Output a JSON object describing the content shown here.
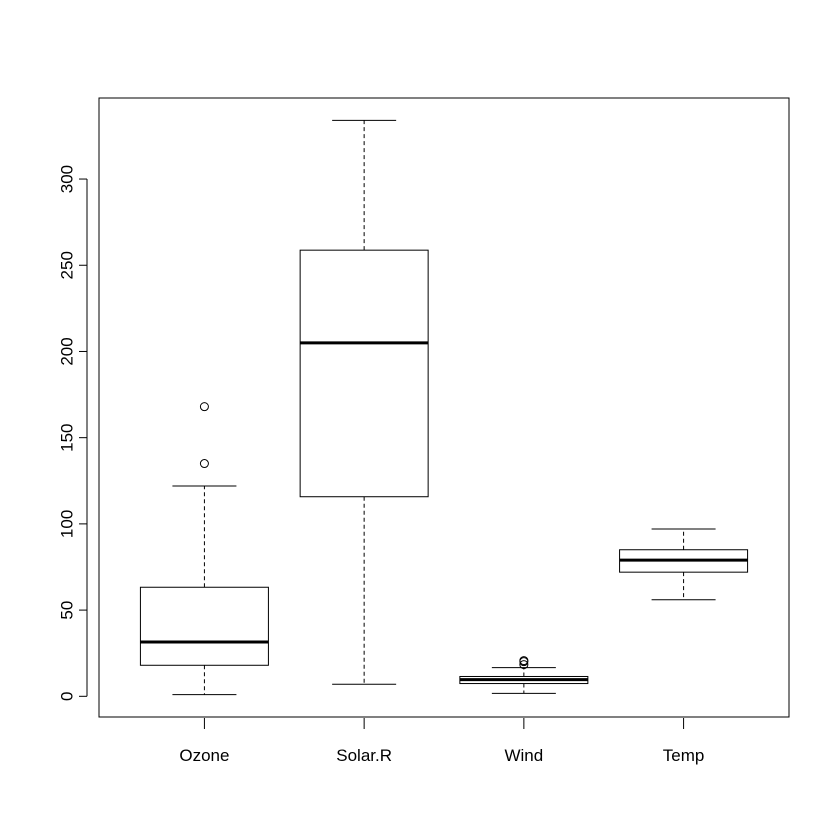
{
  "chart_data": {
    "type": "boxplot",
    "title": "",
    "xlabel": "",
    "ylabel": "",
    "ylim": [
      -12,
      347
    ],
    "y_ticks": [
      0,
      50,
      100,
      150,
      200,
      250,
      300
    ],
    "categories": [
      "Ozone",
      "Solar.R",
      "Wind",
      "Temp"
    ],
    "boxes": [
      {
        "name": "Ozone",
        "whisker_low": 1,
        "q1": 18,
        "median": 31.5,
        "q3": 63.25,
        "whisker_high": 122,
        "outliers": [
          135,
          168
        ]
      },
      {
        "name": "Solar.R",
        "whisker_low": 7,
        "q1": 115.75,
        "median": 205,
        "q3": 258.75,
        "whisker_high": 334,
        "outliers": []
      },
      {
        "name": "Wind",
        "whisker_low": 1.7,
        "q1": 7.4,
        "median": 9.7,
        "q3": 11.5,
        "whisker_high": 16.6,
        "outliers": [
          20.1,
          18.4,
          20.7
        ]
      },
      {
        "name": "Temp",
        "whisker_low": 56,
        "q1": 72,
        "median": 79,
        "q3": 85,
        "whisker_high": 97,
        "outliers": []
      }
    ],
    "grid": false,
    "legend": "none"
  }
}
